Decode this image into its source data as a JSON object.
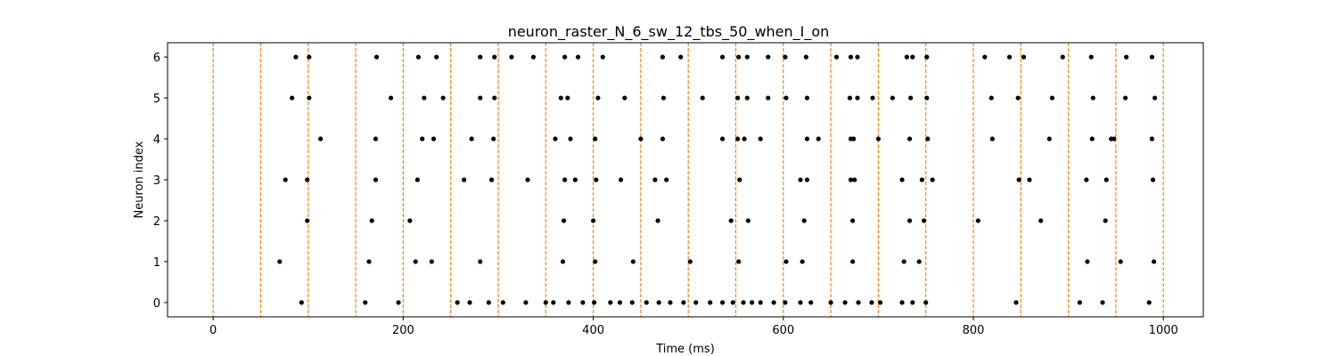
{
  "chart_data": {
    "type": "scatter",
    "title": "neuron_raster_N_6_sw_12_tbs_50_when_I_on",
    "xlabel": "Time (ms)",
    "ylabel": "Neuron index",
    "xlim": [
      -48,
      1042
    ],
    "ylim": [
      -0.35,
      6.35
    ],
    "xticks": [
      0,
      200,
      400,
      600,
      800,
      1000
    ],
    "yticks": [
      0,
      1,
      2,
      3,
      4,
      5,
      6
    ],
    "grid": false,
    "marker_color": "#000000",
    "vline_color": "#ff7f0e",
    "vlines": [
      0,
      50,
      100,
      150,
      200,
      250,
      300,
      350,
      400,
      450,
      500,
      550,
      600,
      650,
      700,
      750,
      800,
      850,
      900,
      950,
      1000
    ],
    "spikes": [
      {
        "neuron": 6,
        "times": [
          87,
          101,
          172,
          216,
          235,
          281,
          296,
          314,
          337,
          370,
          384,
          410,
          473,
          492,
          536,
          553,
          562,
          584,
          602,
          624,
          656,
          671,
          678,
          730,
          736,
          751,
          812,
          838,
          853,
          894,
          924,
          961,
          988
        ]
      },
      {
        "neuron": 5,
        "times": [
          83,
          101,
          187,
          222,
          242,
          281,
          296,
          366,
          373,
          405,
          433,
          474,
          515,
          552,
          562,
          584,
          603,
          625,
          670,
          678,
          694,
          715,
          734,
          751,
          819,
          847,
          883,
          926,
          960,
          991
        ]
      },
      {
        "neuron": 4,
        "times": [
          113,
          171,
          220,
          232,
          272,
          295,
          360,
          376,
          402,
          450,
          473,
          536,
          552,
          559,
          576,
          625,
          637,
          671,
          674,
          700,
          733,
          752,
          820,
          880,
          925,
          945,
          948,
          988
        ]
      },
      {
        "neuron": 3,
        "times": [
          76,
          99,
          171,
          215,
          264,
          293,
          331,
          370,
          381,
          403,
          429,
          465,
          477,
          554,
          618,
          625,
          671,
          675,
          725,
          746,
          757,
          848,
          859,
          919,
          940,
          989
        ]
      },
      {
        "neuron": 2,
        "times": [
          99,
          167,
          207,
          369,
          400,
          468,
          545,
          563,
          622,
          673,
          733,
          748,
          805,
          871,
          939
        ]
      },
      {
        "neuron": 1,
        "times": [
          70,
          164,
          213,
          230,
          281,
          368,
          402,
          442,
          502,
          553,
          603,
          620,
          673,
          727,
          743,
          920,
          955,
          990
        ]
      },
      {
        "neuron": 0,
        "times": [
          93,
          160,
          195,
          257,
          270,
          290,
          305,
          329,
          350,
          358,
          374,
          389,
          401,
          418,
          428,
          441,
          456,
          469,
          481,
          495,
          508,
          523,
          536,
          547,
          558,
          567,
          576,
          590,
          602,
          618,
          629,
          650,
          665,
          679,
          693,
          702,
          725,
          736,
          750,
          845,
          912,
          936,
          985
        ]
      }
    ]
  }
}
